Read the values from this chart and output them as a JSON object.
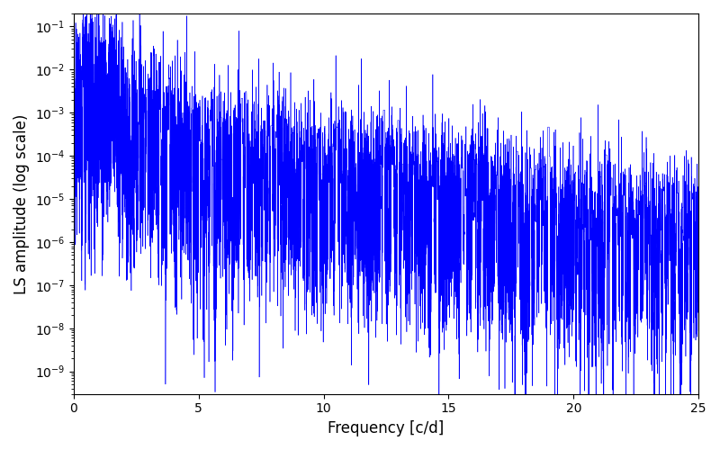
{
  "title": "",
  "xlabel": "Frequency [c/d]",
  "ylabel": "LS amplitude (log scale)",
  "xlim": [
    0,
    25
  ],
  "ylim": [
    3e-10,
    0.2
  ],
  "line_color": "#0000ff",
  "line_width": 0.4,
  "yscale": "log",
  "background_color": "#ffffff",
  "n_points": 15000,
  "freq_max": 25.0,
  "seed": 7,
  "figsize": [
    8.0,
    5.0
  ],
  "dpi": 100
}
